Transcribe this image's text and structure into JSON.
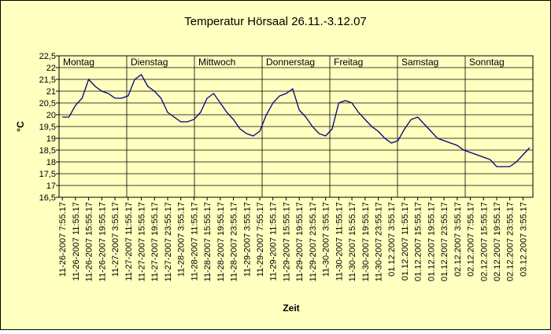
{
  "chart_data": {
    "type": "line",
    "title": "Temperatur Hörsaal 26.11.-3.12.07",
    "x_label": "Zeit",
    "y_label": "°C",
    "day_annotations": [
      "Montag",
      "Dienstag",
      "Mittwoch",
      "Donnerstag",
      "Freitag",
      "Samstag",
      "Sonntag"
    ],
    "categories": [
      "11-26-2007 7:55.17",
      null,
      "11-26-2007 11:55.17",
      null,
      "11-26-2007 15:55.17",
      null,
      "11-26-2007 19:55.17",
      null,
      "11-27-2007 3:55.17",
      null,
      "11-27-2007 11:55.17",
      null,
      "11-27-2007 15:55.17",
      null,
      "11-27-2007 19:55.17",
      null,
      "11-27-2007 23:55.17",
      null,
      "11-28-2007 3:55.17",
      null,
      "11-28-2007 11:55.17",
      null,
      "11-28-2007 15:55.17",
      null,
      "11-28-2007 19:55.17",
      null,
      "11-28-2007 23:55.17",
      null,
      "11-29-2007 3:55.17",
      null,
      "11-29-2007 7:55.17",
      null,
      "11-29-2007 11:55.17",
      null,
      "11-29-2007 15:55.17",
      null,
      "11-29-2007 19:55.17",
      null,
      "11-29-2007 23:55.17",
      null,
      "11-30-2007 3:55.17",
      null,
      "11-30-2007 11:55.17",
      null,
      "11-30-2007 15:55.17",
      null,
      "11-30-2007 19:55.17",
      null,
      "11-30-2007 23:55.17",
      null,
      "01.12.2007 3:55.17",
      null,
      "01.12.2007 11:55.17",
      null,
      "01.12.2007 15:55.17",
      null,
      "01.12.2007 19:55.17",
      null,
      "01.12.2007 23:55.17",
      null,
      "02.12.2007 3:55.17",
      null,
      "02.12.2007 7:55.17",
      null,
      "02.12.2007 15:55.17",
      null,
      "02.12.2007 19:55.17",
      null,
      "02.12.2007 23:55.17",
      null,
      "03.12.2007 3:55.17",
      null
    ],
    "series": [
      {
        "name": "Temperatur",
        "color": "#000080",
        "values": [
          19.9,
          19.9,
          20.4,
          20.7,
          21.5,
          21.2,
          21.0,
          20.9,
          20.7,
          20.7,
          20.8,
          21.5,
          21.7,
          21.2,
          21.0,
          20.7,
          20.1,
          19.9,
          19.7,
          19.7,
          19.8,
          20.1,
          20.7,
          20.9,
          20.5,
          20.1,
          19.8,
          19.4,
          19.2,
          19.1,
          19.3,
          20.0,
          20.5,
          20.8,
          20.9,
          21.1,
          20.2,
          19.9,
          19.5,
          19.2,
          19.1,
          19.4,
          20.5,
          20.6,
          20.5,
          20.1,
          19.8,
          19.5,
          19.3,
          19.0,
          18.8,
          18.9,
          19.4,
          19.8,
          19.9,
          19.6,
          19.3,
          19.0,
          18.9,
          18.8,
          18.7,
          18.5,
          18.4,
          18.3,
          18.2,
          18.1,
          17.8,
          17.8,
          17.8,
          18.0,
          18.3,
          18.6
        ]
      }
    ],
    "ylim": [
      16.5,
      22.5
    ],
    "yticks": [
      {
        "value": 16.5,
        "label": "16,5"
      },
      17,
      {
        "value": 17.5,
        "label": "17,5"
      },
      18,
      {
        "value": 18.5,
        "label": "18,5"
      },
      19,
      {
        "value": 19.5,
        "label": "19,5"
      },
      20,
      {
        "value": 20.5,
        "label": "20,5"
      },
      21,
      {
        "value": 21.5,
        "label": "21,5"
      },
      22,
      {
        "value": 22.5,
        "label": "22,5"
      }
    ],
    "grid": true,
    "background": "#ffffc0"
  }
}
